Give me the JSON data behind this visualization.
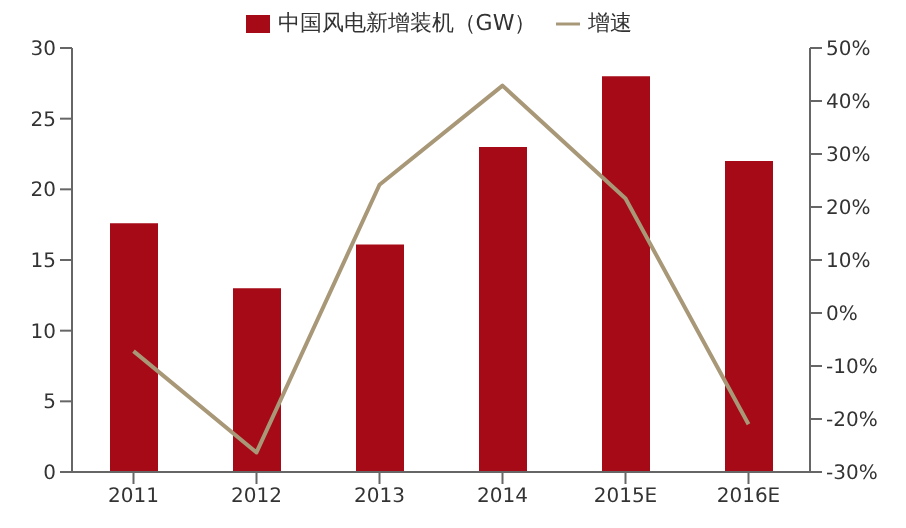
{
  "chart_data": {
    "type": "bar",
    "categories": [
      "2011",
      "2012",
      "2013",
      "2014",
      "2015E",
      "2016E"
    ],
    "series": [
      {
        "name": "中国风电新增装机（GW）",
        "color": "#a50a16",
        "values": [
          17.6,
          13,
          16.1,
          23,
          28,
          22
        ]
      },
      {
        "name": "增速",
        "type": "line",
        "axis": "y2",
        "color": "#a89878",
        "values": [
          -7.2,
          -26.3,
          24.2,
          42.9,
          21.6,
          -21
        ]
      }
    ],
    "ylim": [
      0,
      30
    ],
    "yticks": [
      0,
      5,
      10,
      15,
      20,
      25,
      30
    ],
    "y2lim": [
      -30,
      50
    ],
    "y2ticks": [
      {
        "value": -30,
        "label": "-30%"
      },
      {
        "value": -20,
        "label": "-20%"
      },
      {
        "value": -10,
        "label": "-10%"
      },
      {
        "value": 0,
        "label": "0%"
      },
      {
        "value": 10,
        "label": "10%"
      },
      {
        "value": 20,
        "label": "20%"
      },
      {
        "value": 30,
        "label": "30%"
      },
      {
        "value": 40,
        "label": "40%"
      },
      {
        "value": 50,
        "label": "50%"
      }
    ],
    "legend": "top",
    "grid": false,
    "marker": "none"
  }
}
